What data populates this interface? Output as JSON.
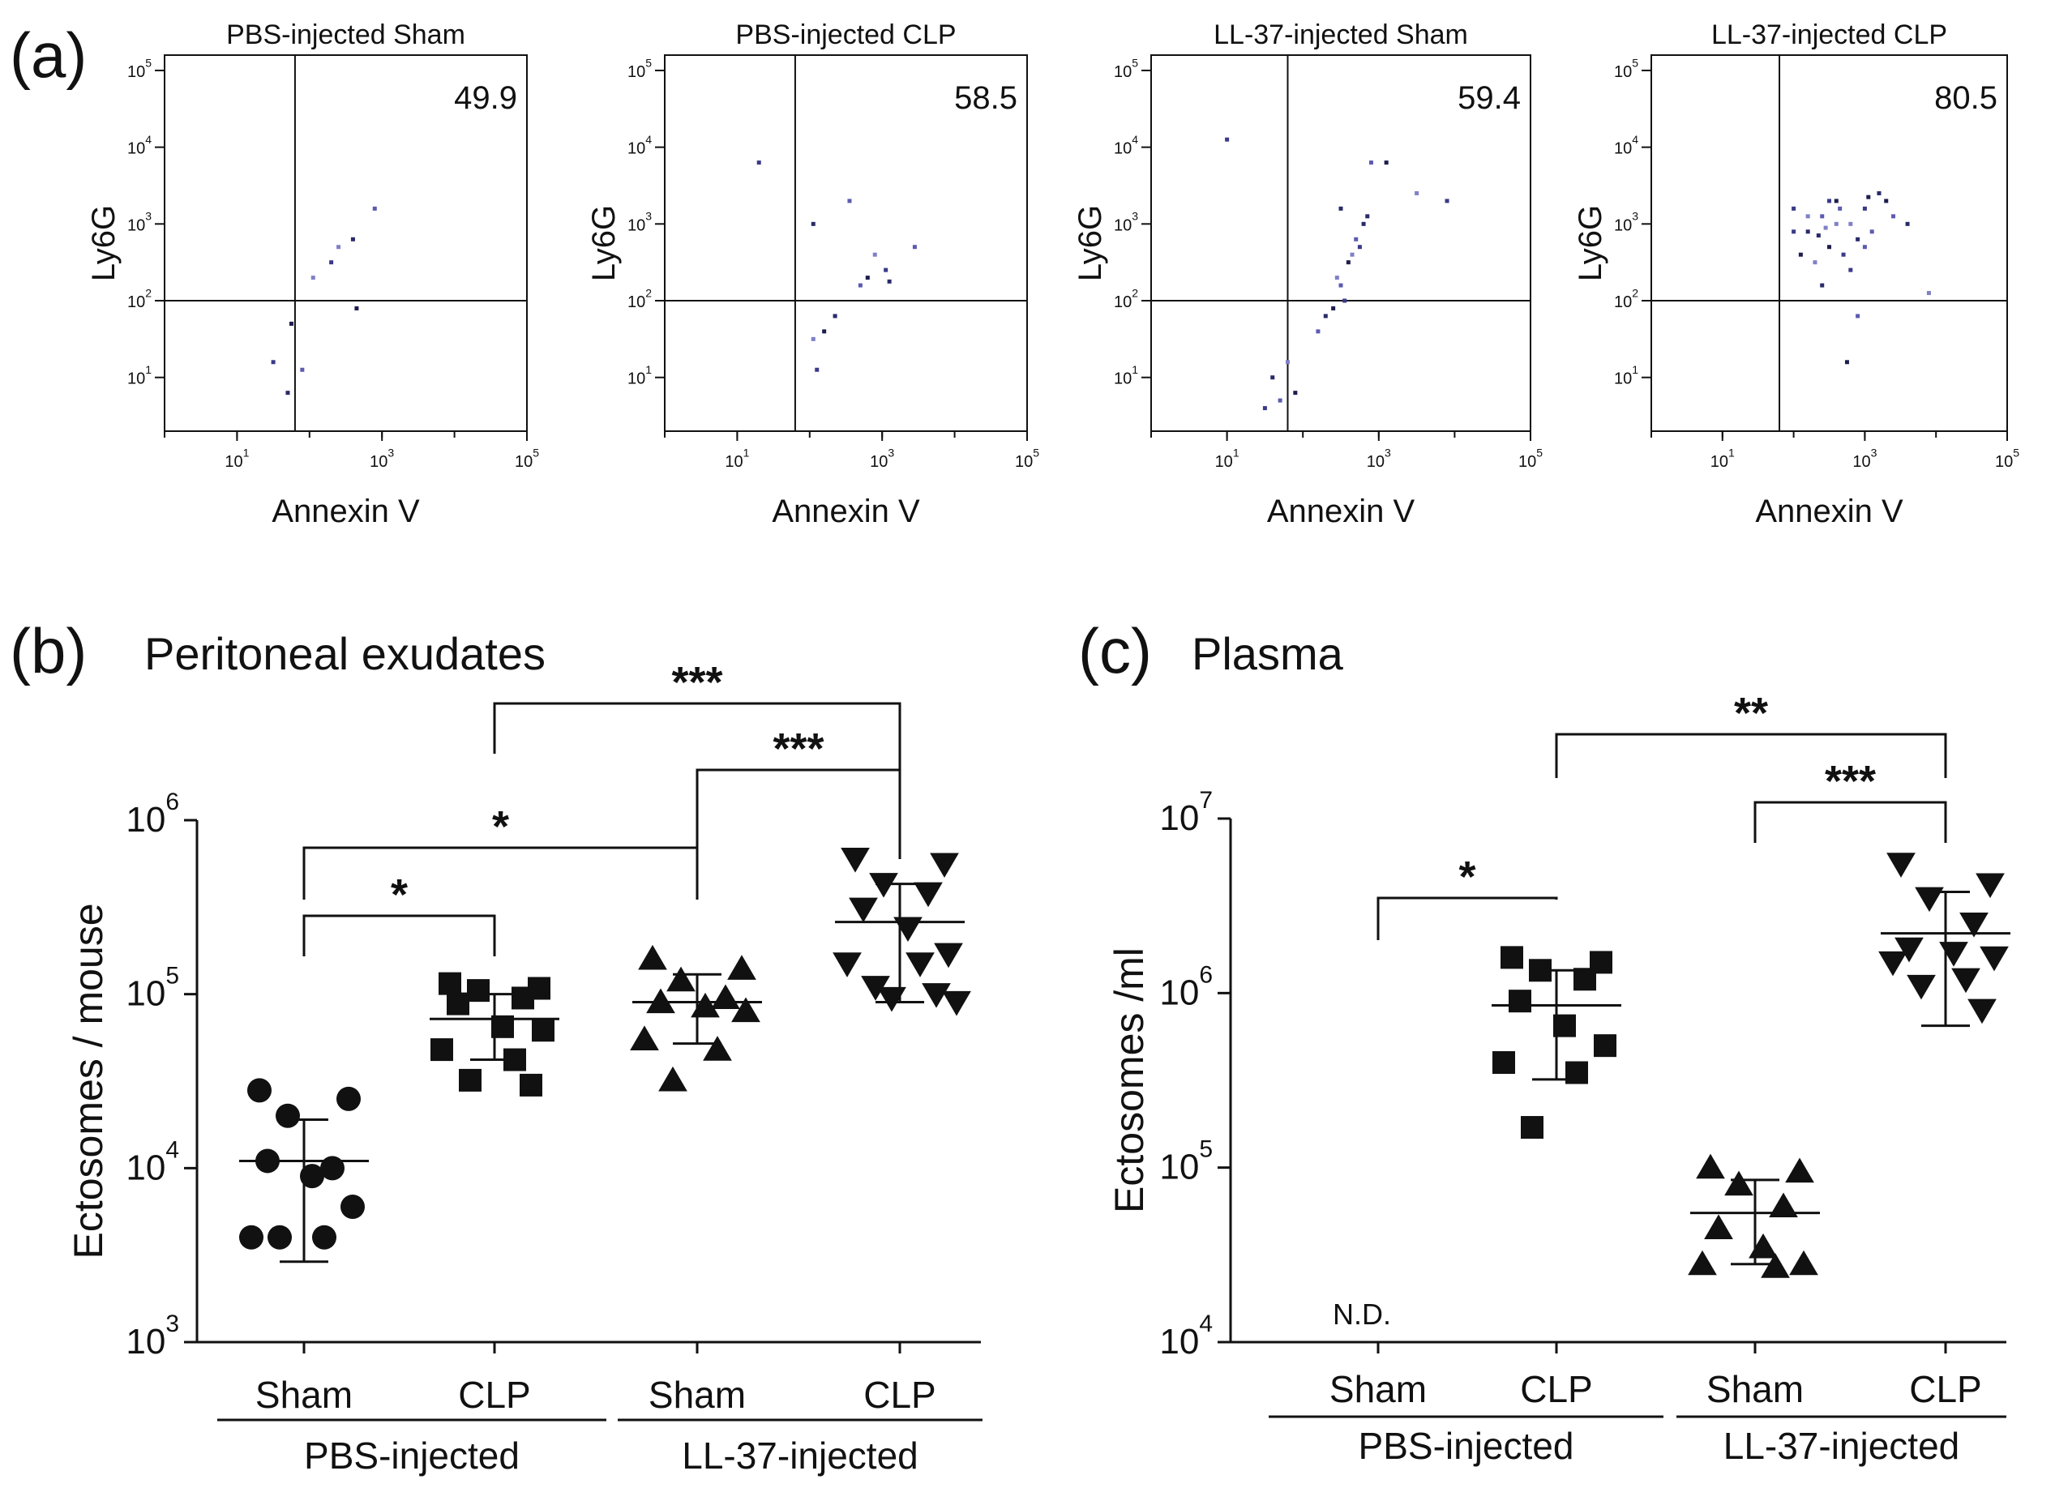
{
  "panel_labels": [
    "(a)",
    "(b)",
    "(c)"
  ],
  "chart_data": [
    {
      "type": "scatter",
      "panel": "(a)",
      "xlabel": "Annexin V",
      "ylabel": "Ly6G",
      "scale": "log",
      "xlim_log10": [
        0,
        5
      ],
      "ylim_log10": [
        0.3,
        5.2
      ],
      "gate_log10": {
        "x": 1.8,
        "y": 2.0
      },
      "tick_base": "10",
      "x_tick_exps": [
        "1",
        "3",
        "5"
      ],
      "y_tick_exps": [
        "1",
        "2",
        "3",
        "4",
        "5"
      ],
      "plots": [
        {
          "title": "PBS-injected Sham",
          "quadrant_value": "49.9",
          "points": [
            [
              1.5,
              1.2
            ],
            [
              1.7,
              0.8
            ],
            [
              1.9,
              1.1
            ],
            [
              1.75,
              1.7
            ],
            [
              2.05,
              2.3
            ],
            [
              2.3,
              2.5
            ],
            [
              2.6,
              2.8
            ],
            [
              2.9,
              3.2
            ],
            [
              2.65,
              1.9
            ],
            [
              2.4,
              2.7
            ]
          ]
        },
        {
          "title": "PBS-injected CLP",
          "quadrant_value": "58.5",
          "points": [
            [
              1.3,
              3.8
            ],
            [
              2.05,
              3.0
            ],
            [
              2.55,
              3.3
            ],
            [
              2.8,
              2.3
            ],
            [
              2.9,
              2.6
            ],
            [
              3.05,
              2.4
            ],
            [
              3.1,
              2.25
            ],
            [
              3.45,
              2.7
            ],
            [
              2.2,
              1.6
            ],
            [
              2.05,
              1.5
            ],
            [
              2.1,
              1.1
            ],
            [
              2.35,
              1.8
            ],
            [
              2.7,
              2.2
            ]
          ]
        },
        {
          "title": "LL-37-injected Sham",
          "quadrant_value": "59.4",
          "points": [
            [
              1.0,
              4.1
            ],
            [
              2.5,
              3.2
            ],
            [
              2.9,
              3.8
            ],
            [
              3.1,
              3.8
            ],
            [
              3.5,
              3.4
            ],
            [
              3.9,
              3.3
            ],
            [
              2.8,
              3.0
            ],
            [
              2.7,
              2.8
            ],
            [
              2.6,
              2.5
            ],
            [
              2.45,
              2.3
            ],
            [
              2.55,
              2.0
            ],
            [
              2.3,
              1.8
            ],
            [
              2.2,
              1.6
            ],
            [
              2.4,
              1.9
            ],
            [
              2.65,
              2.6
            ],
            [
              2.75,
              2.7
            ],
            [
              1.6,
              1.0
            ],
            [
              1.7,
              0.7
            ],
            [
              1.9,
              0.8
            ],
            [
              1.8,
              1.2
            ],
            [
              1.5,
              0.6
            ],
            [
              2.85,
              3.1
            ],
            [
              2.5,
              2.2
            ]
          ]
        },
        {
          "title": "LL-37-injected CLP",
          "quadrant_value": "80.5",
          "points": [
            [
              2.0,
              3.2
            ],
            [
              2.2,
              2.9
            ],
            [
              2.4,
              3.1
            ],
            [
              2.6,
              3.3
            ],
            [
              2.8,
              3.0
            ],
            [
              3.0,
              3.2
            ],
            [
              3.2,
              3.4
            ],
            [
              3.4,
              3.1
            ],
            [
              2.5,
              2.7
            ],
            [
              2.3,
              2.5
            ],
            [
              2.7,
              2.6
            ],
            [
              2.9,
              2.8
            ],
            [
              3.1,
              2.9
            ],
            [
              2.1,
              2.6
            ],
            [
              2.6,
              3.0
            ],
            [
              2.8,
              2.4
            ],
            [
              2.4,
              2.2
            ],
            [
              3.0,
              2.7
            ],
            [
              3.3,
              3.3
            ],
            [
              2.2,
              3.1
            ],
            [
              2.5,
              3.3
            ],
            [
              3.6,
              3.0
            ],
            [
              2.9,
              1.8
            ],
            [
              2.75,
              1.2
            ],
            [
              3.9,
              2.1
            ],
            [
              2.0,
              2.9
            ],
            [
              2.35,
              2.85
            ],
            [
              2.65,
              3.2
            ],
            [
              3.05,
              3.35
            ],
            [
              2.45,
              2.95
            ]
          ]
        }
      ]
    },
    {
      "type": "scatter",
      "panel": "(b)",
      "title": "Peritoneal exudates",
      "ylabel": "Ectosomes / mouse",
      "yscale": "log",
      "ylim": [
        1000,
        1000000
      ],
      "y_tick_exps": [
        "3",
        "4",
        "5",
        "6"
      ],
      "categories": [
        "Sham",
        "CLP",
        "Sham",
        "CLP"
      ],
      "groups": [
        {
          "label": "PBS-injected",
          "span": [
            0,
            1
          ]
        },
        {
          "label": "LL-37-injected",
          "span": [
            2,
            3
          ]
        }
      ],
      "series": [
        {
          "name": "PBS-injected Sham",
          "marker": "circle",
          "mean": 11000,
          "sd_low": 2900,
          "sd_high": 19000,
          "values": [
            28000,
            25000,
            20000,
            10000,
            11000,
            9000,
            6000,
            4000,
            4000,
            4000
          ]
        },
        {
          "name": "PBS-injected CLP",
          "marker": "square",
          "mean": 72000,
          "sd_low": 42000,
          "sd_high": 100000,
          "values": [
            115000,
            108000,
            105000,
            95000,
            88000,
            65000,
            62000,
            48000,
            42000,
            32000,
            30000
          ]
        },
        {
          "name": "LL-37-injected Sham",
          "marker": "triangle-up",
          "mean": 90000,
          "sd_low": 52000,
          "sd_high": 130000,
          "values": [
            160000,
            140000,
            120000,
            95000,
            90000,
            85000,
            80000,
            55000,
            48000,
            32000
          ]
        },
        {
          "name": "LL-37-injected CLP",
          "marker": "triangle-down",
          "mean": 260000,
          "sd_low": 90000,
          "sd_high": 430000,
          "values": [
            600000,
            560000,
            430000,
            380000,
            310000,
            240000,
            170000,
            150000,
            150000,
            110000,
            100000,
            95000,
            90000
          ]
        }
      ],
      "annotations": [
        {
          "from": 0,
          "to": 1,
          "label": "*"
        },
        {
          "from": 0,
          "to": 2,
          "label": "*"
        },
        {
          "from": 2,
          "to": 3,
          "label": "***"
        },
        {
          "from": 1,
          "to": 3,
          "label": "***"
        }
      ]
    },
    {
      "type": "scatter",
      "panel": "(c)",
      "title": "Plasma",
      "ylabel": "Ectosomes /ml",
      "yscale": "log",
      "ylim": [
        10000,
        10000000
      ],
      "y_tick_exps": [
        "4",
        "5",
        "6",
        "7"
      ],
      "categories": [
        "Sham",
        "CLP",
        "Sham",
        "CLP"
      ],
      "groups": [
        {
          "label": "PBS-injected",
          "span": [
            0,
            1
          ]
        },
        {
          "label": "LL-37-injected",
          "span": [
            2,
            3
          ]
        }
      ],
      "not_detected_label": "N.D.",
      "series": [
        {
          "name": "PBS-injected Sham",
          "marker": "none",
          "values": []
        },
        {
          "name": "PBS-injected CLP",
          "marker": "square",
          "mean": 850000,
          "sd_low": 320000,
          "sd_high": 1350000,
          "values": [
            1600000,
            1500000,
            1350000,
            1200000,
            900000,
            650000,
            500000,
            400000,
            350000,
            170000
          ]
        },
        {
          "name": "LL-37-injected Sham",
          "marker": "triangle-up",
          "mean": 55000,
          "sd_low": 28000,
          "sd_high": 85000,
          "values": [
            100000,
            95000,
            80000,
            60000,
            45000,
            35000,
            28000,
            28000,
            27000
          ]
        },
        {
          "name": "LL-37-injected CLP",
          "marker": "triangle-down",
          "mean": 2200000,
          "sd_low": 650000,
          "sd_high": 3800000,
          "values": [
            5500000,
            4200000,
            3500000,
            2500000,
            1800000,
            1700000,
            1600000,
            1500000,
            1200000,
            1100000,
            800000
          ]
        }
      ],
      "annotations": [
        {
          "from": 0,
          "to": 1,
          "label": "*"
        },
        {
          "from": 2,
          "to": 3,
          "label": "***"
        },
        {
          "from": 1,
          "to": 3,
          "label": "**"
        }
      ]
    }
  ]
}
